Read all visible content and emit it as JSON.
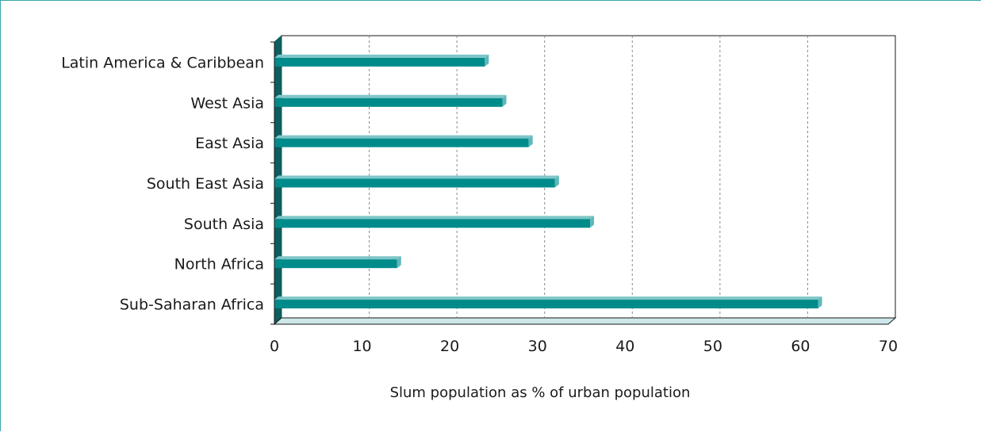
{
  "chart_data": {
    "type": "bar",
    "orientation": "horizontal",
    "categories": [
      "Latin America & Caribbean",
      "West Asia",
      "East Asia",
      "South East Asia",
      "South Asia",
      "North Africa",
      "Sub-Saharan Africa"
    ],
    "values": [
      24,
      26,
      29,
      32,
      36,
      14,
      62
    ],
    "xlabel": "Slum population as % of urban population",
    "ylabel": "",
    "xlim": [
      0,
      70
    ],
    "xticks": [
      "0",
      "10",
      "20",
      "30",
      "40",
      "50",
      "60",
      "70"
    ],
    "grid": "vertical dashed",
    "colors": {
      "bar": "#008b8b",
      "bar_top": "#7fc6c8",
      "bar_side": "#5fb8ba",
      "floor": "#cde7ea",
      "wall": "#0d5e5e",
      "grid": "#8a8a8a",
      "frame": "#3aa6a8"
    }
  }
}
